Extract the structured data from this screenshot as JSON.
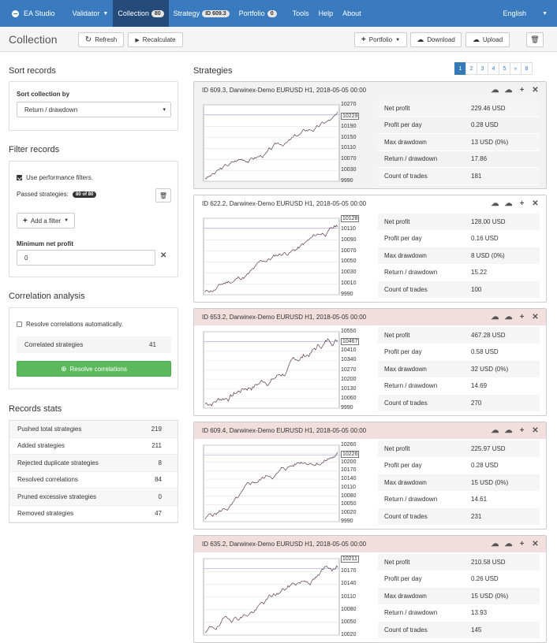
{
  "nav": {
    "app": "EA Studio",
    "validator": "Validator",
    "collection": "Collection",
    "collection_count": "80",
    "strategy": "Strategy",
    "strategy_id": "ID 609.3",
    "portfolio": "Portfolio",
    "portfolio_count": "0",
    "tools": "Tools",
    "help": "Help",
    "about": "About",
    "language": "English"
  },
  "toolbar": {
    "title": "Collection",
    "refresh": "Refresh",
    "recalculate": "Recalculate",
    "portfolio": "Portfolio",
    "download": "Download",
    "upload": "Upload"
  },
  "sort": {
    "heading": "Sort records",
    "label": "Sort collection by",
    "value": "Return / drawdown"
  },
  "filter": {
    "heading": "Filter records",
    "use_filters": "Use performance filters.",
    "passed_label": "Passed strategies:",
    "passed_badge": "80 of 80",
    "add_filter": "Add a filter",
    "min_label": "Minimum net profit",
    "min_value": "0"
  },
  "correlation": {
    "heading": "Correlation analysis",
    "resolve_auto": "Resolve correlations automatically.",
    "correlated_label": "Correlated strategies",
    "correlated_value": "41",
    "button": "Resolve correlations"
  },
  "stats": {
    "heading": "Records stats",
    "rows": [
      {
        "label": "Pushed total strategies",
        "value": "219"
      },
      {
        "label": "Added strategies",
        "value": "211"
      },
      {
        "label": "Rejected duplicate strategies",
        "value": "8"
      },
      {
        "label": "Resolved correlations",
        "value": "84"
      },
      {
        "label": "Pruned excessive strategies",
        "value": "0"
      },
      {
        "label": "Removed strategies",
        "value": "47"
      }
    ]
  },
  "strategies": {
    "heading": "Strategies",
    "pages": [
      "1",
      "2",
      "3",
      "4",
      "5",
      "»",
      "8"
    ],
    "current_page": "1",
    "metric_labels": [
      "Net profit",
      "Profit per day",
      "Max drawdown",
      "Return / drawdown",
      "Count of trades"
    ],
    "items": [
      {
        "title": "ID 609.3, Darwinex-Demo EURUSD H1, 2018-05-05 00:00",
        "style": "sel",
        "ticks": [
          "10270",
          "10229",
          "10190",
          "10150",
          "10110",
          "10070",
          "10030",
          "9990"
        ],
        "marker": "10229",
        "metrics": [
          "229.46 USD",
          "0.28 USD",
          "13 USD (0%)",
          "17.86",
          "181"
        ]
      },
      {
        "title": "ID 622.2, Darwinex-Demo EURUSD H1, 2018-05-05 00:00",
        "style": "",
        "ticks": [
          "10128",
          "10110",
          "10090",
          "10070",
          "10050",
          "10030",
          "10010",
          "9990"
        ],
        "marker": "10128",
        "metrics": [
          "128.00 USD",
          "0.16 USD",
          "8 USD (0%)",
          "15.22",
          "100"
        ]
      },
      {
        "title": "ID 653.2, Darwinex-Demo EURUSD H1, 2018-05-05 00:00",
        "style": "red",
        "ticks": [
          "10550",
          "10467",
          "10410",
          "10340",
          "10270",
          "10200",
          "10130",
          "10060",
          "9990"
        ],
        "marker": "10467",
        "metrics": [
          "467.28 USD",
          "0.58 USD",
          "32 USD (0%)",
          "14.69",
          "270"
        ]
      },
      {
        "title": "ID 609.4, Darwinex-Demo EURUSD H1, 2018-05-05 00:00",
        "style": "red",
        "ticks": [
          "10260",
          "10226",
          "10200",
          "10170",
          "10140",
          "10110",
          "10080",
          "10050",
          "10020",
          "9990"
        ],
        "marker": "10226",
        "metrics": [
          "225.97 USD",
          "0.28 USD",
          "15 USD (0%)",
          "14.61",
          "231"
        ]
      },
      {
        "title": "ID 635.2, Darwinex-Demo EURUSD H1, 2018-05-05 00:00",
        "style": "red",
        "ticks": [
          "10211",
          "10170",
          "10140",
          "10110",
          "10080",
          "10050",
          "10020"
        ],
        "marker": "10211",
        "metrics": [
          "210.58 USD",
          "0.26 USD",
          "15 USD (0%)",
          "13.93",
          "145"
        ]
      }
    ]
  }
}
